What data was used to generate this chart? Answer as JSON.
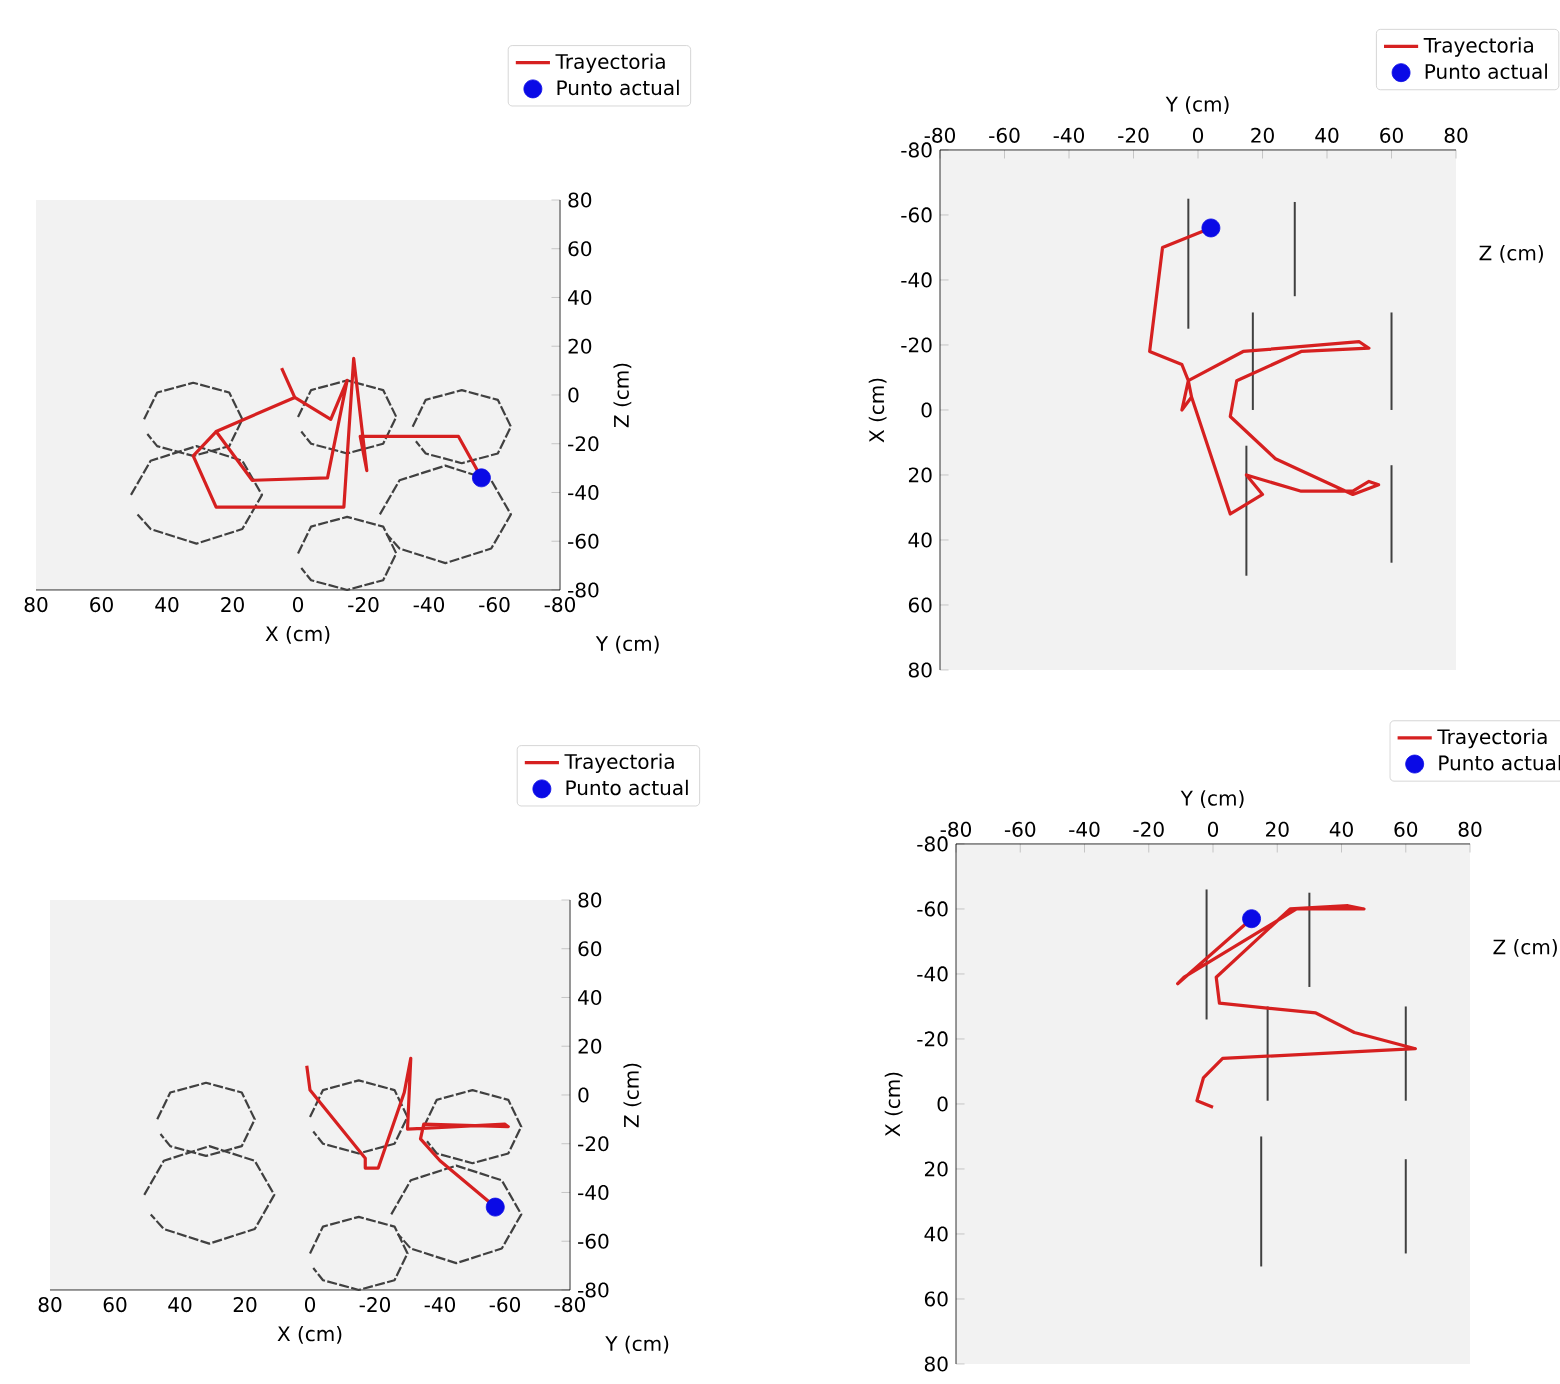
{
  "chart_data": [
    {
      "type": "line",
      "xlabel": "X (cm)",
      "ylabel": "Z (cm)",
      "xlim": [
        80,
        -80
      ],
      "ylim": [
        -80,
        80
      ],
      "xticks": [
        80,
        60,
        40,
        20,
        0,
        -20,
        -40,
        -60,
        -80
      ],
      "yticks": [
        -80,
        -60,
        -40,
        -20,
        0,
        20,
        40,
        60,
        80
      ],
      "legend": "top right",
      "annotations": [
        "Y (cm)"
      ],
      "series": [
        {
          "color": "#404040",
          "line_style": "dashed",
          "x": [
            47,
            43,
            32,
            21,
            17,
            21,
            32,
            43,
            46
          ],
          "values": [
            -10,
            1,
            5,
            1,
            -10,
            -21,
            -25,
            -21,
            -16
          ]
        },
        {
          "color": "#404040",
          "line_style": "dashed",
          "x": [
            51,
            45,
            31,
            17,
            11,
            17,
            31,
            45,
            49
          ],
          "values": [
            -41,
            -27,
            -21,
            -27,
            -41,
            -55,
            -61,
            -55,
            -49
          ]
        },
        {
          "color": "#404040",
          "line_style": "dashed",
          "x": [
            0,
            -4,
            -15,
            -26,
            -30,
            -26,
            -15,
            -4,
            -1
          ],
          "values": [
            -9,
            2,
            6,
            2,
            -9,
            -20,
            -24,
            -20,
            -15
          ]
        },
        {
          "color": "#404040",
          "line_style": "dashed",
          "x": [
            -35,
            -39,
            -50,
            -61,
            -65,
            -61,
            -50,
            -39,
            -36
          ],
          "values": [
            -13,
            -2,
            2,
            -2,
            -13,
            -24,
            -28,
            -24,
            -19
          ]
        },
        {
          "color": "#404040",
          "line_style": "dashed",
          "x": [
            -25,
            -31,
            -45,
            -59,
            -65,
            -59,
            -45,
            -31,
            -27
          ],
          "values": [
            -49,
            -35,
            -29,
            -35,
            -49,
            -63,
            -69,
            -63,
            -57
          ]
        },
        {
          "color": "#404040",
          "line_style": "dashed",
          "x": [
            0,
            -4,
            -15,
            -26,
            -30,
            -26,
            -15,
            -4,
            -1
          ],
          "values": [
            -65,
            -54,
            -50,
            -54,
            -65,
            -76,
            -80,
            -76,
            -71
          ]
        },
        {
          "name": "Trayectoria",
          "color": "#d62020",
          "line_style": "solid",
          "x": [
            5,
            1,
            25,
            14,
            -9,
            -15,
            -10,
            1,
            25,
            32,
            25,
            -14,
            -17,
            -21,
            -19,
            -49,
            -56
          ],
          "values": [
            11,
            -1,
            -15,
            -35,
            -34,
            6,
            -10,
            -1,
            -15,
            -25,
            -46,
            -46,
            15,
            -31,
            -17,
            -17,
            -34
          ]
        },
        {
          "type": "scatter",
          "name": "Punto actual",
          "color": "#0a0ae6",
          "x": [
            -56
          ],
          "values": [
            -34
          ]
        }
      ]
    },
    {
      "type": "line",
      "xlabel": "Y (cm)",
      "ylabel": "X (cm)",
      "xlim": [
        -80,
        80
      ],
      "ylim": [
        80,
        -80
      ],
      "xticks": [
        -80,
        -60,
        -40,
        -20,
        0,
        20,
        40,
        60,
        80
      ],
      "yticks": [
        -80,
        -60,
        -40,
        -20,
        0,
        20,
        40,
        60,
        80
      ],
      "legend": "top right",
      "annotations": [
        "Z (cm)"
      ],
      "series": [
        {
          "color": "#404040",
          "line_style": "solid",
          "x": [
            -3,
            -3
          ],
          "values": [
            -65,
            -25
          ]
        },
        {
          "color": "#404040",
          "line_style": "solid",
          "x": [
            30,
            30
          ],
          "values": [
            -64,
            -35
          ]
        },
        {
          "color": "#404040",
          "line_style": "solid",
          "x": [
            17,
            17
          ],
          "values": [
            -30,
            0
          ]
        },
        {
          "color": "#404040",
          "line_style": "solid",
          "x": [
            60,
            60
          ],
          "values": [
            -30,
            0
          ]
        },
        {
          "color": "#404040",
          "line_style": "solid",
          "x": [
            15,
            15
          ],
          "values": [
            11,
            51
          ]
        },
        {
          "color": "#404040",
          "line_style": "solid",
          "x": [
            60,
            60
          ],
          "values": [
            17,
            47
          ]
        },
        {
          "name": "Trayectoria",
          "color": "#d62020",
          "line_style": "solid",
          "x": [
            -5,
            -2,
            -3,
            14,
            38,
            50,
            53,
            32,
            12,
            10,
            24,
            48,
            56,
            53,
            48,
            32,
            15,
            20,
            10,
            -2,
            -5,
            -3,
            -5,
            -15,
            -11,
            4
          ],
          "values": [
            0,
            -4,
            -9,
            -18,
            -20,
            -21,
            -19,
            -18,
            -9,
            2,
            15,
            26,
            23,
            22,
            25,
            25,
            20,
            26,
            32,
            -4,
            0,
            -9,
            -14,
            -18,
            -50,
            -56
          ]
        },
        {
          "type": "scatter",
          "name": "Punto actual",
          "color": "#0a0ae6",
          "x": [
            4
          ],
          "values": [
            -56
          ]
        }
      ]
    },
    {
      "type": "line",
      "xlabel": "X (cm)",
      "ylabel": "Z (cm)",
      "xlim": [
        80,
        -80
      ],
      "ylim": [
        -80,
        80
      ],
      "xticks": [
        80,
        60,
        40,
        20,
        0,
        -20,
        -40,
        -60,
        -80
      ],
      "yticks": [
        -80,
        -60,
        -40,
        -20,
        0,
        20,
        40,
        60,
        80
      ],
      "legend": "top right",
      "annotations": [
        "Y (cm)"
      ],
      "series": [
        {
          "color": "#404040",
          "line_style": "dashed",
          "x": [
            47,
            43,
            32,
            21,
            17,
            21,
            32,
            43,
            46
          ],
          "values": [
            -10,
            1,
            5,
            1,
            -10,
            -21,
            -25,
            -21,
            -16
          ]
        },
        {
          "color": "#404040",
          "line_style": "dashed",
          "x": [
            51,
            45,
            31,
            17,
            11,
            17,
            31,
            45,
            49
          ],
          "values": [
            -41,
            -27,
            -21,
            -27,
            -41,
            -55,
            -61,
            -55,
            -49
          ]
        },
        {
          "color": "#404040",
          "line_style": "dashed",
          "x": [
            0,
            -4,
            -15,
            -26,
            -30,
            -26,
            -15,
            -4,
            -1
          ],
          "values": [
            -9,
            2,
            6,
            2,
            -9,
            -20,
            -24,
            -20,
            -15
          ]
        },
        {
          "color": "#404040",
          "line_style": "dashed",
          "x": [
            -35,
            -39,
            -50,
            -61,
            -65,
            -61,
            -50,
            -39,
            -36
          ],
          "values": [
            -13,
            -2,
            2,
            -2,
            -13,
            -24,
            -28,
            -24,
            -19
          ]
        },
        {
          "color": "#404040",
          "line_style": "dashed",
          "x": [
            -25,
            -31,
            -45,
            -59,
            -65,
            -59,
            -45,
            -31,
            -27
          ],
          "values": [
            -49,
            -35,
            -29,
            -35,
            -49,
            -63,
            -69,
            -63,
            -57
          ]
        },
        {
          "color": "#404040",
          "line_style": "dashed",
          "x": [
            0,
            -4,
            -15,
            -26,
            -30,
            -26,
            -15,
            -4,
            -1
          ],
          "values": [
            -65,
            -54,
            -50,
            -54,
            -65,
            -76,
            -80,
            -76,
            -71
          ]
        },
        {
          "name": "Trayectoria",
          "color": "#d62020",
          "line_style": "solid",
          "x": [
            1,
            0,
            -17,
            -17,
            -21,
            -29,
            -31,
            -30,
            -60,
            -61,
            -35,
            -34,
            -40,
            -57
          ],
          "values": [
            12,
            2,
            -26,
            -30,
            -30,
            1,
            15,
            -14,
            -12,
            -13,
            -12,
            -18,
            -27,
            -46
          ]
        },
        {
          "type": "scatter",
          "name": "Punto actual",
          "color": "#0a0ae6",
          "x": [
            -57
          ],
          "values": [
            -46
          ]
        }
      ]
    },
    {
      "type": "line",
      "xlabel": "Y (cm)",
      "ylabel": "X (cm)",
      "xlim": [
        -80,
        80
      ],
      "ylim": [
        80,
        -80
      ],
      "xticks": [
        -80,
        -60,
        -40,
        -20,
        0,
        20,
        40,
        60,
        80
      ],
      "yticks": [
        -80,
        -60,
        -40,
        -20,
        0,
        20,
        40,
        60,
        80
      ],
      "legend": "top right",
      "annotations": [
        "Z (cm)"
      ],
      "series": [
        {
          "color": "#404040",
          "line_style": "solid",
          "x": [
            -2,
            -2
          ],
          "values": [
            -66,
            -26
          ]
        },
        {
          "color": "#404040",
          "line_style": "solid",
          "x": [
            30,
            30
          ],
          "values": [
            -65,
            -36
          ]
        },
        {
          "color": "#404040",
          "line_style": "solid",
          "x": [
            17,
            17
          ],
          "values": [
            -30,
            -1
          ]
        },
        {
          "color": "#404040",
          "line_style": "solid",
          "x": [
            60,
            60
          ],
          "values": [
            -30,
            -1
          ]
        },
        {
          "color": "#404040",
          "line_style": "solid",
          "x": [
            15,
            15
          ],
          "values": [
            10,
            50
          ]
        },
        {
          "color": "#404040",
          "line_style": "solid",
          "x": [
            60,
            60
          ],
          "values": [
            17,
            46
          ]
        },
        {
          "name": "Trayectoria",
          "color": "#d62020",
          "line_style": "solid",
          "x": [
            0,
            -5,
            -3,
            3,
            63,
            44,
            32,
            2,
            1,
            24,
            42,
            47,
            26,
            -9,
            -11,
            12
          ],
          "values": [
            1,
            -1,
            -8,
            -14,
            -17,
            -22,
            -28,
            -31,
            -39,
            -60,
            -61,
            -60,
            -60,
            -39,
            -37,
            -57
          ]
        },
        {
          "type": "scatter",
          "name": "Punto actual",
          "color": "#0a0ae6",
          "x": [
            12
          ],
          "values": [
            -57
          ]
        }
      ]
    }
  ]
}
